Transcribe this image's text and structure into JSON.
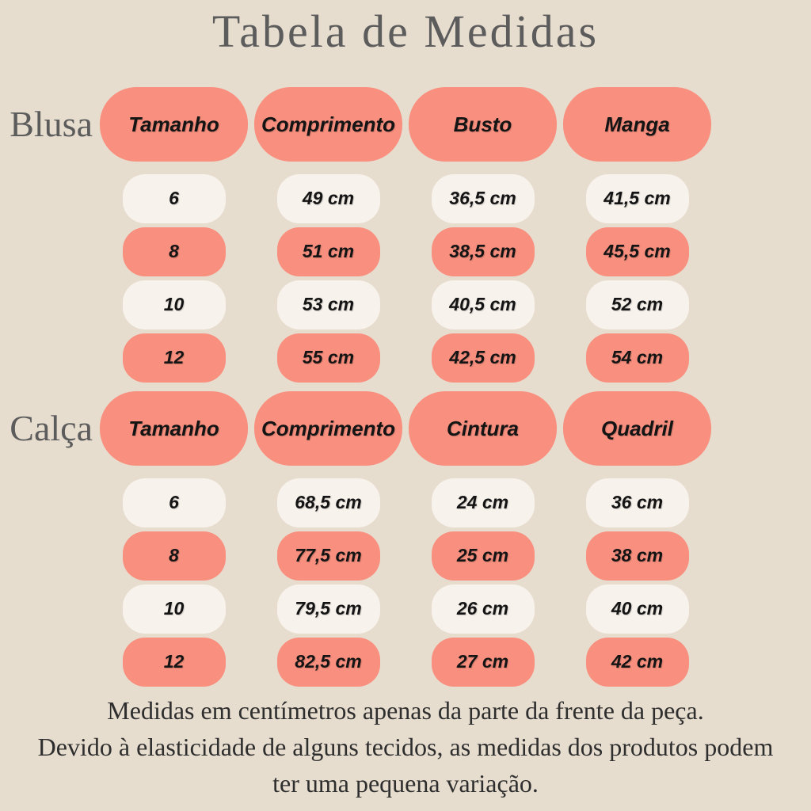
{
  "page": {
    "title": "Tabela de Medidas"
  },
  "colors": {
    "bg": "#e7ddcf",
    "salmon": "#f9907f",
    "cream": "#f8f2ec",
    "gray": "#5c5c5c",
    "ink": "#141414",
    "footer-ink": "#2e2e2e"
  },
  "chart_data": [
    {
      "type": "table",
      "title": "Blusa",
      "columns": [
        "Tamanho",
        "Comprimento",
        "Busto",
        "Manga"
      ],
      "rows": [
        [
          "6",
          "49 cm",
          "36,5 cm",
          "41,5 cm"
        ],
        [
          "8",
          "51 cm",
          "38,5 cm",
          "45,5 cm"
        ],
        [
          "10",
          "53 cm",
          "40,5 cm",
          "52 cm"
        ],
        [
          "12",
          "55 cm",
          "42,5 cm",
          "54 cm"
        ]
      ]
    },
    {
      "type": "table",
      "title": "Calça",
      "columns": [
        "Tamanho",
        "Comprimento",
        "Cintura",
        "Quadril"
      ],
      "rows": [
        [
          "6",
          "68,5 cm",
          "24 cm",
          "36 cm"
        ],
        [
          "8",
          "77,5 cm",
          "25 cm",
          "38 cm"
        ],
        [
          "10",
          "79,5 cm",
          "26 cm",
          "40 cm"
        ],
        [
          "12",
          "82,5 cm",
          "27 cm",
          "42 cm"
        ]
      ]
    }
  ],
  "footer": {
    "lines": [
      "Medidas em centímetros apenas da parte da frente da peça.",
      "Devido à elasticidade de alguns tecidos, as medidas dos produtos podem",
      "ter uma pequena variação."
    ]
  }
}
